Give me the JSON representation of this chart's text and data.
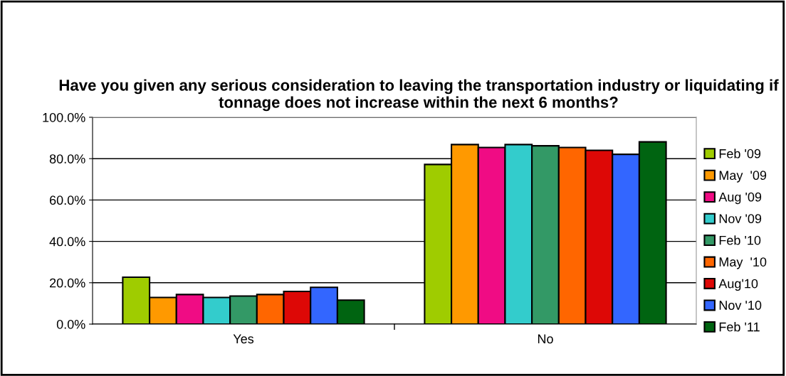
{
  "chart_data": {
    "type": "bar",
    "title": "Have you given any serious consideration to leaving the transportation industry or liquidating if tonnage does not increase within the next 6 months?",
    "categories": [
      "Yes",
      "No"
    ],
    "series": [
      {
        "name": "Feb '09",
        "color": "#9fcc00",
        "values": [
          22.7,
          77.2
        ]
      },
      {
        "name": "May  '09",
        "color": "#ff9900",
        "values": [
          12.9,
          86.8
        ]
      },
      {
        "name": "Aug '09",
        "color": "#f00c84",
        "values": [
          14.3,
          85.4
        ]
      },
      {
        "name": "Nov '09",
        "color": "#33cccc",
        "values": [
          12.9,
          86.8
        ]
      },
      {
        "name": "Feb '10",
        "color": "#339966",
        "values": [
          13.6,
          86.2
        ]
      },
      {
        "name": "May  '10",
        "color": "#ff6600",
        "values": [
          14.3,
          85.4
        ]
      },
      {
        "name": "Aug'10",
        "color": "#dd0806",
        "values": [
          15.8,
          84.0
        ]
      },
      {
        "name": "Nov '10",
        "color": "#3366ff",
        "values": [
          17.8,
          82.1
        ]
      },
      {
        "name": "Feb '11",
        "color": "#006411",
        "values": [
          11.6,
          88.1
        ]
      }
    ],
    "ylim": [
      0,
      100
    ],
    "yticks": [
      {
        "value": 0,
        "label": "0.0%"
      },
      {
        "value": 20,
        "label": "20.0%"
      },
      {
        "value": 40,
        "label": "40.0%"
      },
      {
        "value": 60,
        "label": "60.0%"
      },
      {
        "value": 80,
        "label": "80.0%"
      },
      {
        "value": 100,
        "label": "100.0%"
      }
    ],
    "grid": "y",
    "legend": "right"
  }
}
